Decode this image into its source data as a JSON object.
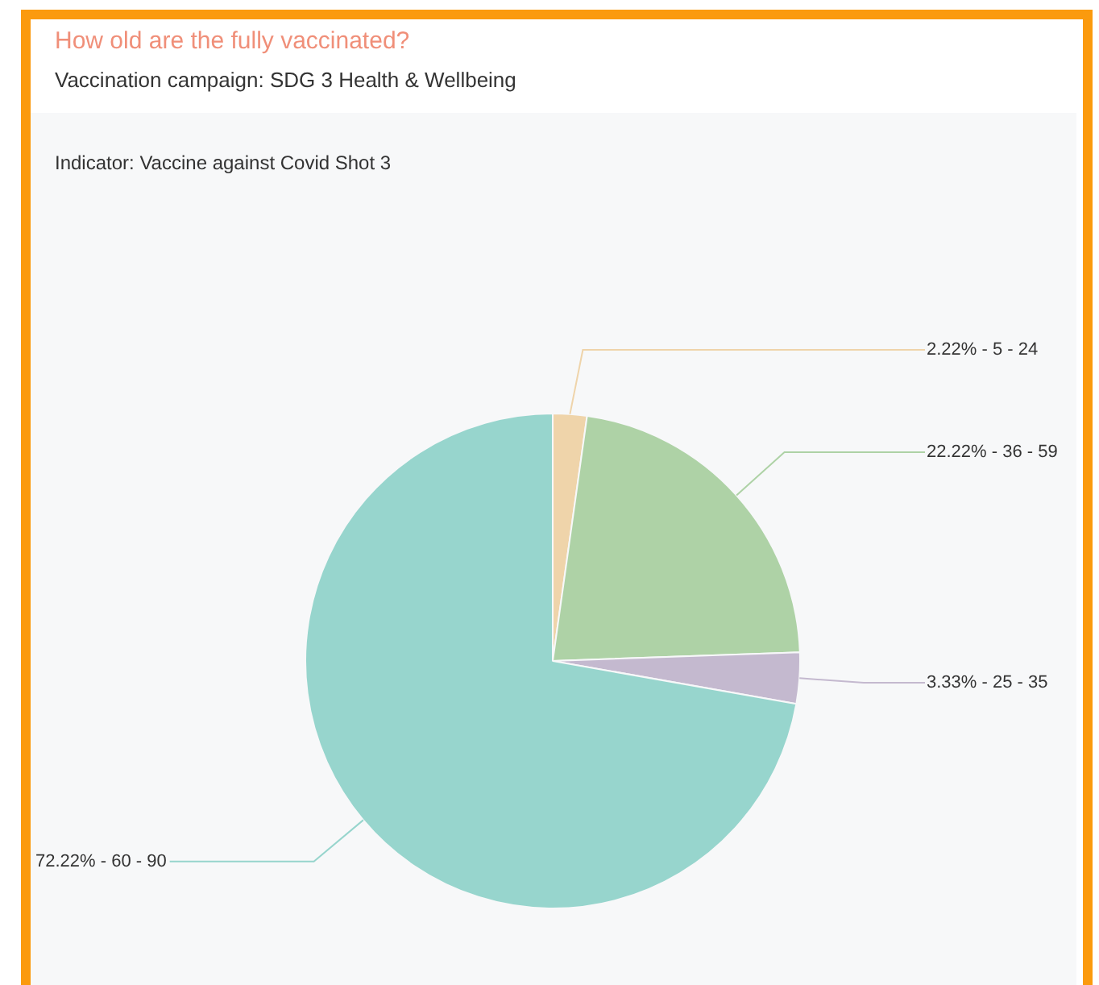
{
  "chart_data": {
    "type": "pie",
    "title": "How old are the fully vaccinated?",
    "subtitle": "Vaccination campaign: SDG 3 Health & Wellbeing",
    "annotations": [
      "Indicator: Vaccine against Covid Shot 3"
    ],
    "categories": [
      "5 - 24",
      "36 - 59",
      "25 - 35",
      "60 - 90"
    ],
    "values": [
      2.22,
      22.22,
      3.33,
      72.22
    ],
    "colors": [
      "#efd4aa",
      "#aed2a6",
      "#c4b9cf",
      "#97d5cd"
    ],
    "value_labels": [
      "2.22% -",
      "22.22% -",
      "3.33% -",
      "72.22% -"
    ],
    "legend": false
  }
}
